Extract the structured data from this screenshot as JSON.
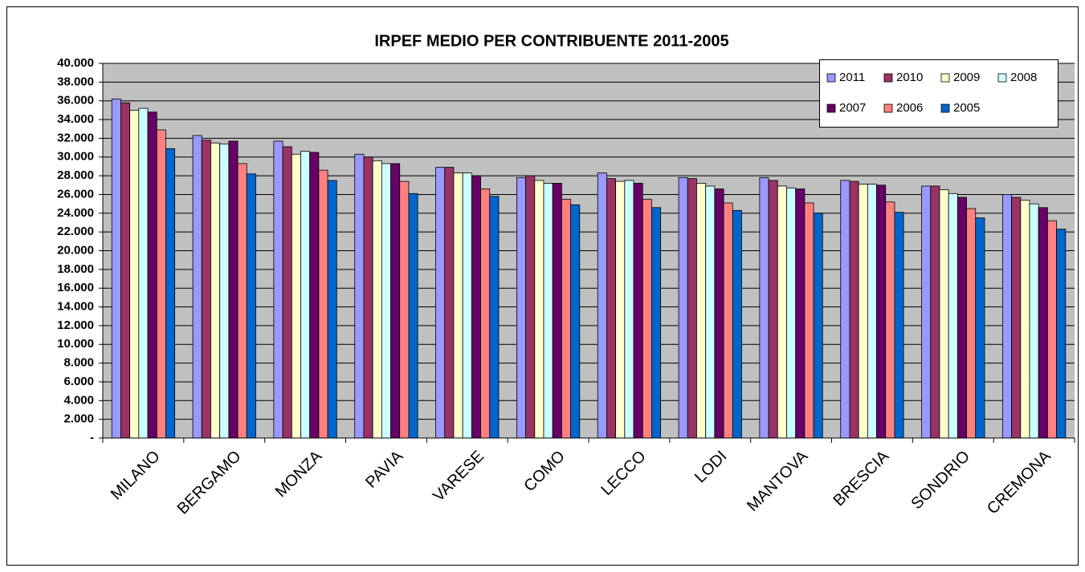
{
  "chart_data": {
    "type": "bar",
    "title": "IRPEF MEDIO PER CONTRIBUENTE 2011-2005",
    "categories": [
      "MILANO",
      "BERGAMO",
      "MONZA",
      "PAVIA",
      "VARESE",
      "COMO",
      "LECCO",
      "LODI",
      "MANTOVA",
      "BRESCIA",
      "SONDRIO",
      "CREMONA"
    ],
    "series": [
      {
        "name": "2011",
        "color": "#9999ff",
        "values": [
          36200,
          32300,
          31700,
          30300,
          28900,
          27800,
          28300,
          27800,
          27800,
          27500,
          26900,
          26000
        ]
      },
      {
        "name": "2010",
        "color": "#993366",
        "values": [
          35800,
          31800,
          31100,
          30000,
          28900,
          28000,
          27700,
          27700,
          27500,
          27400,
          26900,
          25700
        ]
      },
      {
        "name": "2009",
        "color": "#ffffcc",
        "values": [
          35000,
          31500,
          30300,
          29600,
          28300,
          27500,
          27400,
          27200,
          26900,
          27100,
          26500,
          25400
        ]
      },
      {
        "name": "2008",
        "color": "#ccffff",
        "values": [
          35200,
          31400,
          30600,
          29300,
          28300,
          27200,
          27500,
          26900,
          26700,
          27100,
          26100,
          25000
        ]
      },
      {
        "name": "2007",
        "color": "#660066",
        "values": [
          34800,
          31700,
          30500,
          29300,
          28000,
          27200,
          27200,
          26600,
          26600,
          27000,
          25700,
          24600
        ]
      },
      {
        "name": "2006",
        "color": "#ff8080",
        "values": [
          32900,
          29300,
          28600,
          27400,
          26600,
          25500,
          25500,
          25100,
          25100,
          25200,
          24500,
          23200
        ]
      },
      {
        "name": "2005",
        "color": "#0066cc",
        "values": [
          30900,
          28200,
          27500,
          26100,
          25800,
          24900,
          24600,
          24300,
          24000,
          24100,
          23500,
          22300
        ]
      }
    ],
    "ylim": [
      0,
      40000
    ],
    "yticks": [
      {
        "value": 0,
        "label": "-"
      },
      {
        "value": 2000,
        "label": "2.000"
      },
      {
        "value": 4000,
        "label": "4.000"
      },
      {
        "value": 6000,
        "label": "6.000"
      },
      {
        "value": 8000,
        "label": "8.000"
      },
      {
        "value": 10000,
        "label": "10.000"
      },
      {
        "value": 12000,
        "label": "12.000"
      },
      {
        "value": 14000,
        "label": "14.000"
      },
      {
        "value": 16000,
        "label": "16.000"
      },
      {
        "value": 18000,
        "label": "18.000"
      },
      {
        "value": 20000,
        "label": "20.000"
      },
      {
        "value": 22000,
        "label": "22.000"
      },
      {
        "value": 24000,
        "label": "24.000"
      },
      {
        "value": 26000,
        "label": "26.000"
      },
      {
        "value": 28000,
        "label": "28.000"
      },
      {
        "value": 30000,
        "label": "30.000"
      },
      {
        "value": 32000,
        "label": "32.000"
      },
      {
        "value": 34000,
        "label": "34.000"
      },
      {
        "value": 36000,
        "label": "36.000"
      },
      {
        "value": 38000,
        "label": "38.000"
      },
      {
        "value": 40000,
        "label": "40.000"
      }
    ],
    "grid": true,
    "legend": "top-right"
  }
}
